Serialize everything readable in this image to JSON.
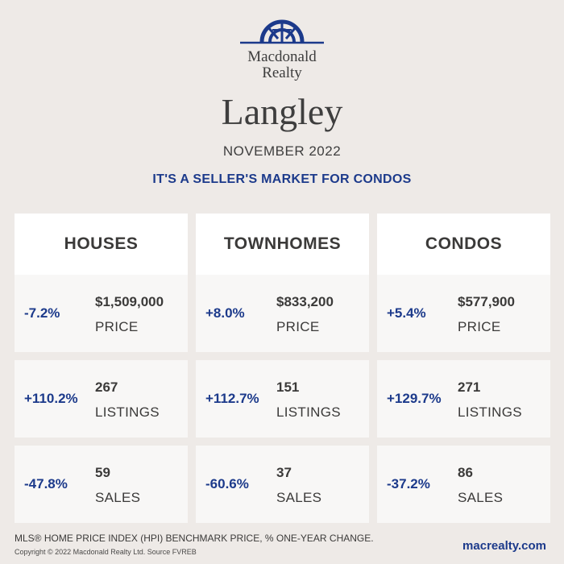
{
  "brand": {
    "line1": "Macdonald",
    "line2": "Realty",
    "logo_icon": "dome-arch-icon",
    "accent_color": "#1c3a8b"
  },
  "title": {
    "city": "Langley",
    "month": "NOVEMBER 2022",
    "headline": "IT'S A SELLER'S MARKET FOR CONDOS"
  },
  "columns": [
    {
      "name": "HOUSES",
      "rows": [
        {
          "change": "-7.2%",
          "value": "$1,509,000",
          "label": "PRICE"
        },
        {
          "change": "+110.2%",
          "value": "267",
          "label": "LISTINGS"
        },
        {
          "change": "-47.8%",
          "value": "59",
          "label": "SALES"
        }
      ]
    },
    {
      "name": "TOWNHOMES",
      "rows": [
        {
          "change": "+8.0%",
          "value": "$833,200",
          "label": "PRICE"
        },
        {
          "change": "+112.7%",
          "value": "151",
          "label": "LISTINGS"
        },
        {
          "change": "-60.6%",
          "value": "37",
          "label": "SALES"
        }
      ]
    },
    {
      "name": "CONDOS",
      "rows": [
        {
          "change": "+5.4%",
          "value": "$577,900",
          "label": "PRICE"
        },
        {
          "change": "+129.7%",
          "value": "271",
          "label": "LISTINGS"
        },
        {
          "change": "-37.2%",
          "value": "86",
          "label": "SALES"
        }
      ]
    }
  ],
  "footer": {
    "note": "MLS® HOME PRICE INDEX (HPI) BENCHMARK PRICE, % ONE-YEAR CHANGE.",
    "copyright": "Copyright © 2022 Macdonald Realty Ltd. Source FVREB",
    "website": "macrealty.com"
  }
}
